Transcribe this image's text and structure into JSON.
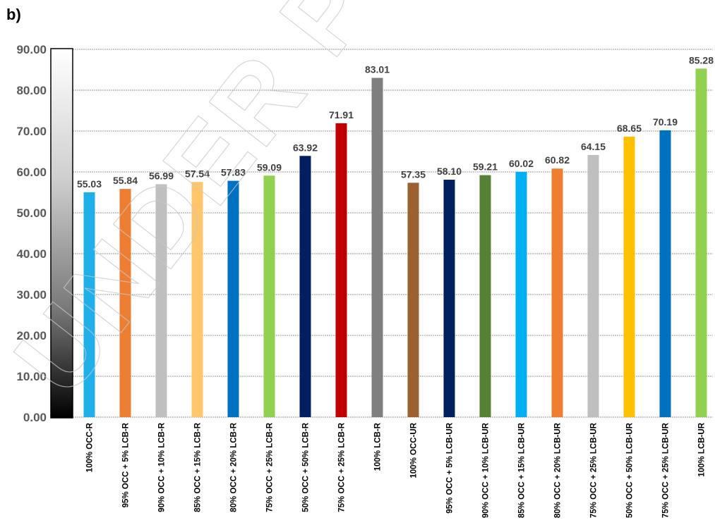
{
  "panel_label": "b)",
  "watermark": "UNDER PEER",
  "chart_data": {
    "type": "bar",
    "title": "",
    "xlabel": "",
    "ylabel": "",
    "ylim": [
      0,
      90
    ],
    "yticks": [
      "0.00",
      "10.00",
      "20.00",
      "30.00",
      "40.00",
      "50.00",
      "60.00",
      "70.00",
      "80.00",
      "90.00"
    ],
    "grid": true,
    "categories": [
      "100% OCC-R",
      "95% OCC + 5% LCB-R",
      "90% OCC + 10% LCB-R",
      "85% OCC + 15% LCB-R",
      "80% OCC + 20% LCB-R",
      "75% OCC + 25% LCB-R",
      "50% OCC + 50% LCB-R",
      "75% OCC + 25% LCB-R",
      "100% LCB-R",
      "100% OCC-UR",
      "95% OCC + 5% LCB-UR",
      "90% OCC + 10% LCB-UR",
      "85% OCC + 15% LCB-UR",
      "80% OCC + 20% LCB-UR",
      "75% OCC + 25% LCB-UR",
      "50% OCC + 50% LCB-UR",
      "75% OCC + 25% LCB-UR",
      "100% LCB-UR"
    ],
    "values": [
      55.03,
      55.84,
      56.99,
      57.54,
      57.83,
      59.09,
      63.92,
      71.91,
      83.01,
      57.35,
      58.1,
      59.21,
      60.02,
      60.82,
      64.15,
      68.65,
      70.19,
      85.28
    ],
    "value_labels": [
      "55.03",
      "55.84",
      "56.99",
      "57.54",
      "57.83",
      "59.09",
      "63.92",
      "71.91",
      "83.01",
      "57.35",
      "58.10",
      "59.21",
      "60.02",
      "60.82",
      "64.15",
      "68.65",
      "70.19",
      "85.28"
    ],
    "colors": [
      "#1fb0ea",
      "#ed7d31",
      "#bfbfbf",
      "#ffc56a",
      "#0070c0",
      "#92d050",
      "#002060",
      "#c00000",
      "#7f7f7f",
      "#9c6130",
      "#002060",
      "#548235",
      "#00b0f0",
      "#ed7d31",
      "#bfbfbf",
      "#ffc000",
      "#0070c0",
      "#92d050"
    ]
  }
}
